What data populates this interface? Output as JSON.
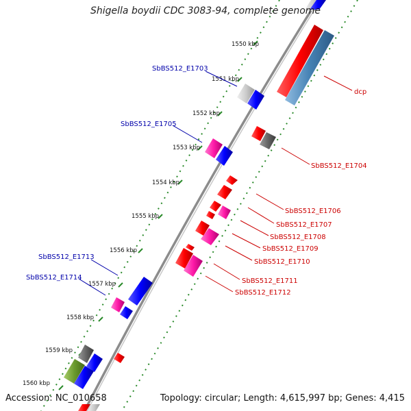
{
  "title": "Shigella boydii CDC 3083-94, complete genome",
  "accession": "Accession: NC_010658",
  "topology": "Topology: circular; Length: 4,615,997 bp; Genes: 4,415",
  "colors": {
    "label_blue": "#0000aa",
    "label_red": "#cc0000",
    "backbone": "#888888",
    "tick_green": "#2a8a2a"
  },
  "ruler": [
    {
      "label": "1550 kbp",
      "kbp": 1550
    },
    {
      "label": "1551 kbp",
      "kbp": 1551
    },
    {
      "label": "1552 kbp",
      "kbp": 1552
    },
    {
      "label": "1553 kbp",
      "kbp": 1553
    },
    {
      "label": "1554 kbp",
      "kbp": 1554
    },
    {
      "label": "1555 kbp",
      "kbp": 1555
    },
    {
      "label": "1556 kbp",
      "kbp": 1556
    },
    {
      "label": "1557 kbp",
      "kbp": 1557
    },
    {
      "label": "1558 kbp",
      "kbp": 1558
    },
    {
      "label": "1559 kbp",
      "kbp": 1559
    },
    {
      "label": "1560 kbp",
      "kbp": 1560
    }
  ],
  "gene_labels_left": [
    {
      "name": "SbBS512_E1703"
    },
    {
      "name": "SbBS512_E1705"
    },
    {
      "name": "SbBS512_E1713"
    },
    {
      "name": "SbBS512_E1714"
    }
  ],
  "gene_labels_right": [
    {
      "name": "dcp"
    },
    {
      "name": "SbBS512_E1704"
    },
    {
      "name": "SbBS512_E1706"
    },
    {
      "name": "SbBS512_E1707"
    },
    {
      "name": "SbBS512_E1708"
    },
    {
      "name": "SbBS512_E1709"
    },
    {
      "name": "SbBS512_E1710"
    },
    {
      "name": "SbBS512_E1711"
    },
    {
      "name": "SbBS512_E1712"
    }
  ]
}
